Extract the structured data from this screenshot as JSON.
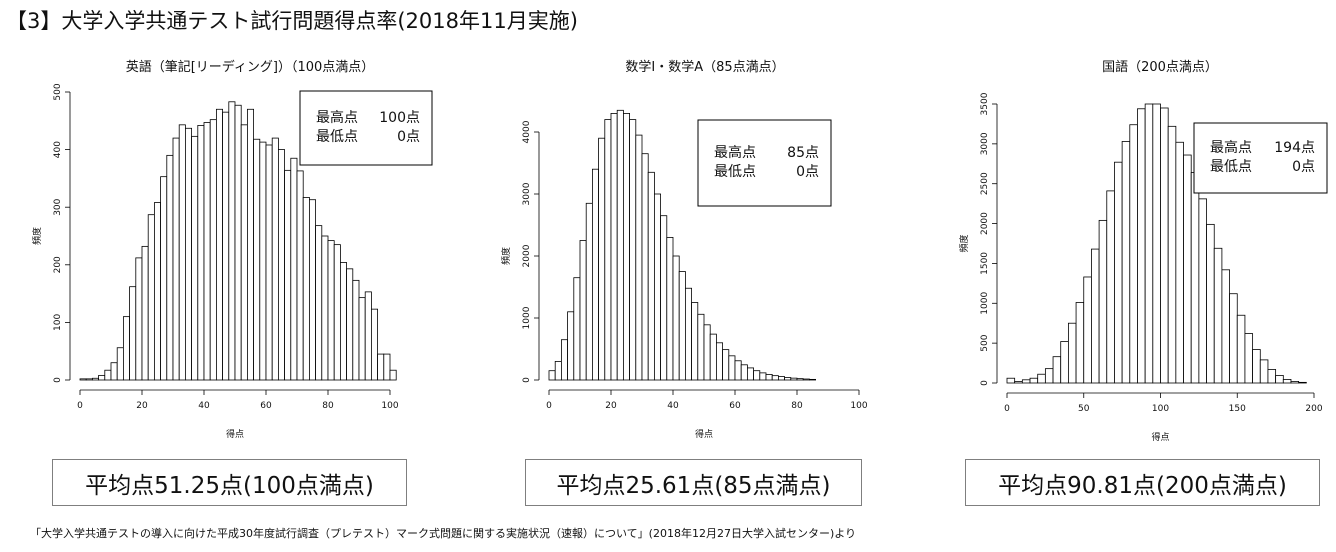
{
  "page": {
    "title": "【3】大学入学共通テスト試行問題得点率(2018年11月実施)",
    "source": "「大学入学共通テストの導入に向けた平成30年度試行調査（プレテスト）マーク式問題に関する実施状況（速報）について」(2018年12月27日大学入試センター)より"
  },
  "summary_boxes": [
    {
      "text": "平均点51.25点(100点満点)"
    },
    {
      "text": "平均点25.61点(85点満点)"
    },
    {
      "text": "平均点90.81点(200点満点)"
    }
  ],
  "chart_data": [
    {
      "type": "bar",
      "title": "英語（筆記[リーディング]）（100点満点）",
      "xlabel": "得点",
      "ylabel": "頻度",
      "xlim": [
        0,
        100
      ],
      "ylim": [
        0,
        500
      ],
      "xticks": [
        0,
        20,
        40,
        60,
        80,
        100
      ],
      "yticks": [
        0,
        100,
        200,
        300,
        400,
        500
      ],
      "bin_start": 0,
      "bin_width": 2,
      "values": [
        2,
        2,
        3,
        8,
        17,
        30,
        56,
        110,
        162,
        212,
        232,
        287,
        308,
        353,
        390,
        420,
        443,
        437,
        423,
        442,
        447,
        452,
        470,
        465,
        483,
        477,
        443,
        470,
        418,
        413,
        408,
        420,
        400,
        364,
        385,
        363,
        317,
        313,
        268,
        250,
        242,
        235,
        204,
        193,
        173,
        143,
        153,
        123,
        45,
        45,
        17
      ],
      "stats_box": [
        {
          "label": "最高点",
          "value": "100点"
        },
        {
          "label": "最低点",
          "value": "0点"
        }
      ]
    },
    {
      "type": "bar",
      "title": "数学Ⅰ・数学A（85点満点）",
      "xlabel": "得点",
      "ylabel": "頻度",
      "xlim": [
        0,
        100
      ],
      "ylim": [
        0,
        4000
      ],
      "xticks": [
        0,
        20,
        40,
        60,
        80,
        100
      ],
      "yticks": [
        0,
        1000,
        2000,
        3000,
        4000
      ],
      "bin_start": 0,
      "bin_width": 2,
      "values": [
        150,
        300,
        650,
        1100,
        1650,
        2250,
        2850,
        3400,
        3900,
        4200,
        4300,
        4350,
        4300,
        4200,
        3950,
        3650,
        3350,
        3000,
        2650,
        2300,
        2000,
        1750,
        1480,
        1250,
        1060,
        890,
        740,
        600,
        490,
        390,
        310,
        245,
        195,
        150,
        115,
        90,
        70,
        55,
        40,
        30,
        22,
        16,
        10
      ],
      "stats_box": [
        {
          "label": "最高点",
          "value": "85点"
        },
        {
          "label": "最低点",
          "value": "0点"
        }
      ]
    },
    {
      "type": "bar",
      "title": "国語（200点満点）",
      "xlabel": "得点",
      "ylabel": "頻度",
      "xlim": [
        0,
        200
      ],
      "ylim": [
        0,
        3500
      ],
      "xticks": [
        0,
        50,
        100,
        150,
        200
      ],
      "yticks": [
        0,
        500,
        1000,
        1500,
        2000,
        2500,
        3000,
        3500
      ],
      "bin_start": 0,
      "bin_width": 5,
      "values": [
        60,
        20,
        40,
        60,
        110,
        180,
        330,
        520,
        750,
        1010,
        1330,
        1680,
        2040,
        2410,
        2770,
        3030,
        3240,
        3440,
        3500,
        3500,
        3450,
        3220,
        3020,
        2860,
        2640,
        2310,
        1990,
        1690,
        1420,
        1120,
        850,
        620,
        420,
        290,
        170,
        95,
        45,
        20,
        8
      ],
      "stats_box": [
        {
          "label": "最高点",
          "value": "194点"
        },
        {
          "label": "最低点",
          "value": "0点"
        }
      ]
    }
  ]
}
